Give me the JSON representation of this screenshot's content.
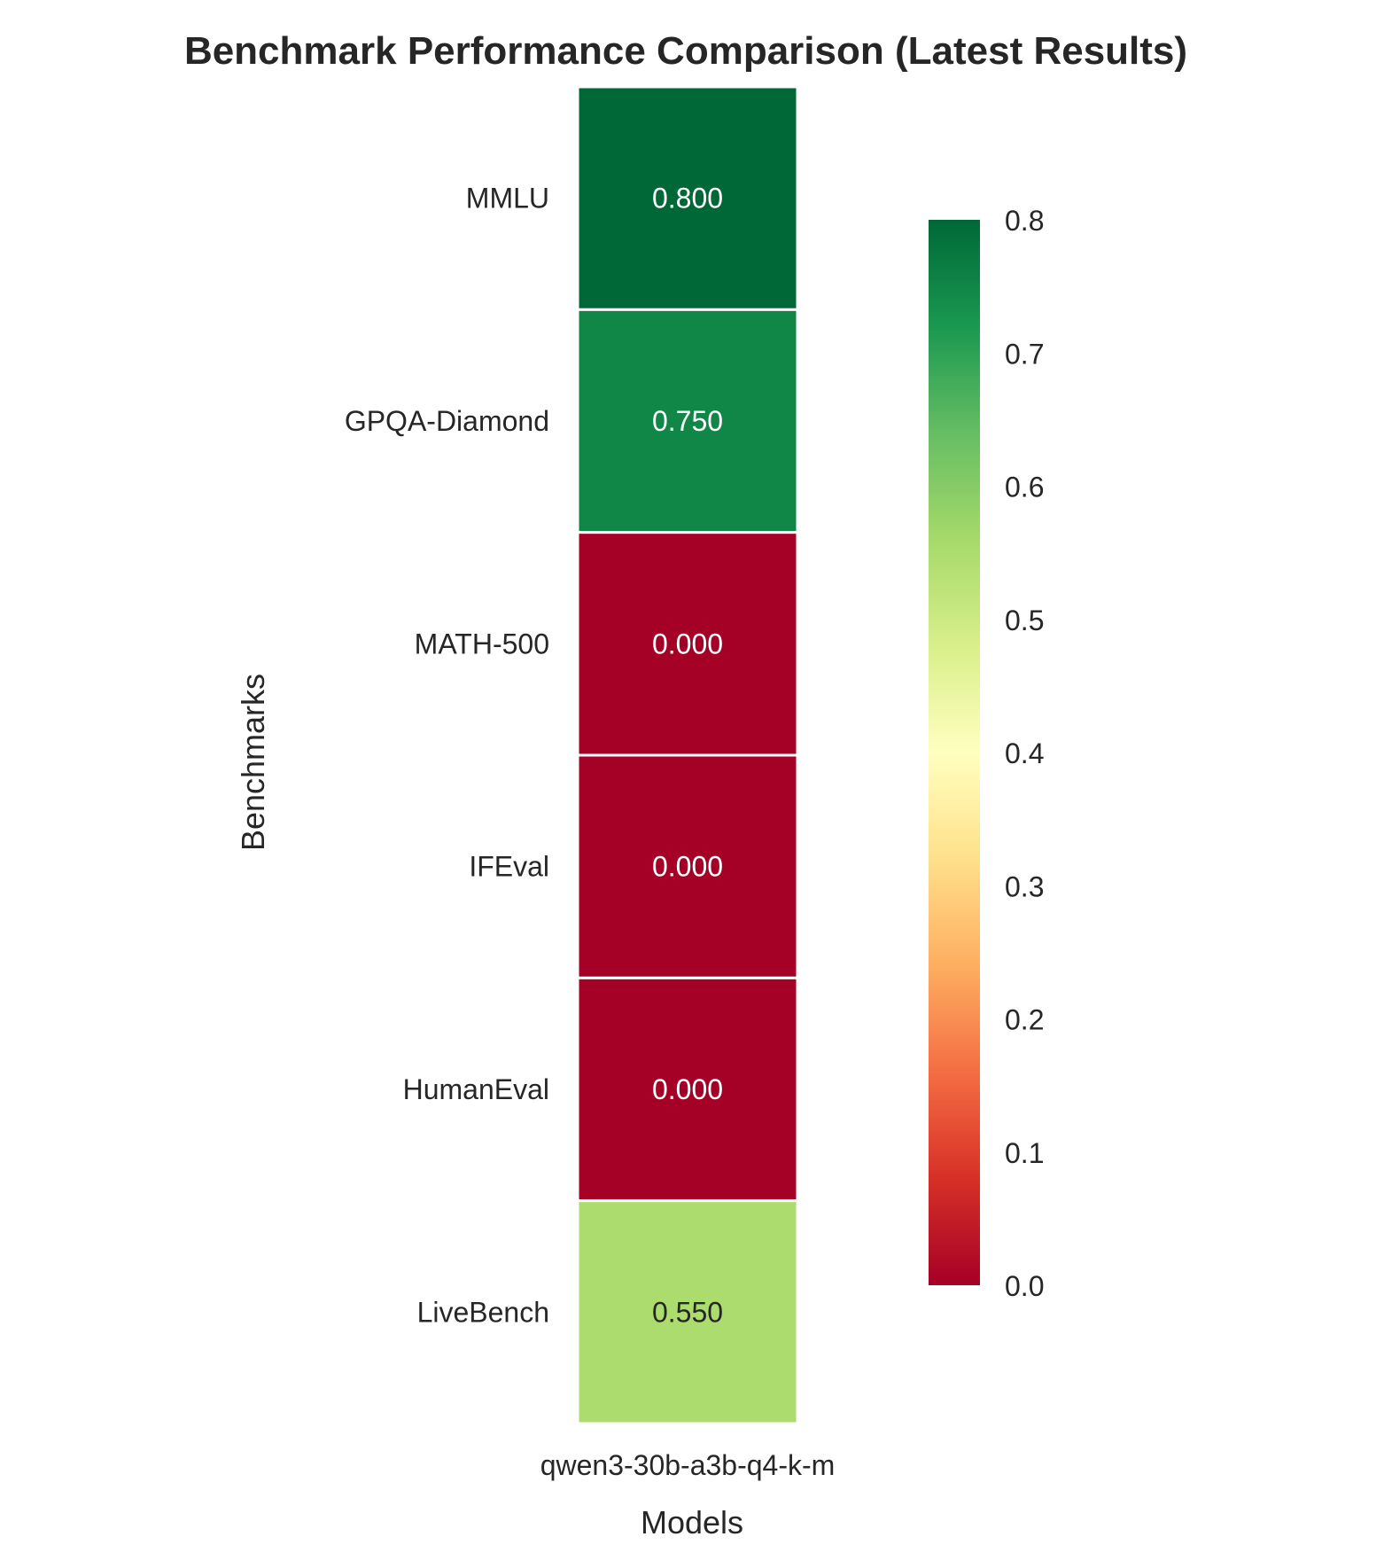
{
  "chart_data": {
    "type": "heatmap",
    "title": "Benchmark Performance Comparison (Latest Results)",
    "xlabel": "Models",
    "ylabel": "Benchmarks",
    "columns": [
      "qwen3-30b-a3b-q4-k-m"
    ],
    "rows": [
      "MMLU",
      "GPQA-Diamond",
      "MATH-500",
      "IFEval",
      "HumanEval",
      "LiveBench"
    ],
    "values": [
      [
        0.8
      ],
      [
        0.75
      ],
      [
        0.0
      ],
      [
        0.0
      ],
      [
        0.0
      ],
      [
        0.55
      ]
    ],
    "cell_labels": [
      "0.800",
      "0.750",
      "0.000",
      "0.000",
      "0.000",
      "0.550"
    ],
    "colormap": "RdYlGn",
    "vmin": 0.0,
    "vmax": 0.8,
    "colorbar_ticks": [
      "0.0",
      "0.1",
      "0.2",
      "0.3",
      "0.4",
      "0.5",
      "0.6",
      "0.7",
      "0.8"
    ],
    "colorbar": "right",
    "grid": false
  },
  "colors": {
    "cell_border": "#ffffff",
    "text_dark": "#262626",
    "text_light": "#ffffff"
  }
}
